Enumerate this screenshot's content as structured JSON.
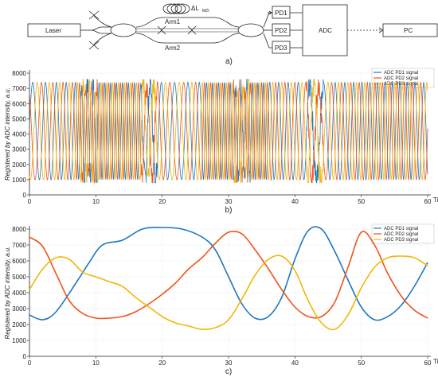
{
  "diagram": {
    "laser": "Laser",
    "arm1": "Arm1",
    "arm2": "Arm2",
    "delta": "ΔL",
    "delta_sub": "MZI",
    "pd1": "PD1",
    "pd2": "PD2",
    "pd3": "PD3",
    "adc": "ADC",
    "pc": "PC",
    "panel": "a)"
  },
  "chart_data": [
    {
      "type": "line",
      "panel": "b)",
      "ylabel": "Registered by ADC intensity, a.u.",
      "xlabel": "Time, s",
      "xlim": [
        0,
        60
      ],
      "ylim": [
        0,
        8000
      ],
      "xticks": [
        0,
        10,
        20,
        30,
        40,
        50,
        60
      ],
      "yticks": [
        0,
        1000,
        2000,
        3000,
        4000,
        5000,
        6000,
        7000,
        8000
      ],
      "legend_position": "top-right",
      "series": [
        {
          "name": "ADC PD1 signal",
          "color": "#1f77c0"
        },
        {
          "name": "ADC PD2 signal",
          "color": "#f0531c"
        },
        {
          "name": "ADC PD3 signal",
          "color": "#f2b705"
        }
      ],
      "pattern": "fast oscillation between ~1000 and ~7500 with noisy bursts near t≈9, 18, 32, 43 s"
    },
    {
      "type": "line",
      "panel": "c)",
      "ylabel": "Registered by ADC intensity, a.u.",
      "xlabel": "Time, s",
      "xlim": [
        0,
        60
      ],
      "ylim": [
        0,
        8000
      ],
      "xticks": [
        0,
        10,
        20,
        30,
        40,
        50,
        60
      ],
      "yticks": [
        0,
        1000,
        2000,
        3000,
        4000,
        5000,
        6000,
        7000,
        8000
      ],
      "legend_position": "top-right",
      "series": [
        {
          "name": "ADC PD1 signal",
          "color": "#1f77c0",
          "x": [
            0,
            2,
            4,
            7,
            9,
            11,
            14,
            17,
            20,
            23,
            26,
            28,
            30,
            32,
            34,
            36,
            38,
            40,
            42,
            44,
            46,
            48,
            50,
            52,
            54,
            56,
            58,
            60
          ],
          "y": [
            2600,
            2300,
            2800,
            4600,
            5900,
            7000,
            7300,
            8000,
            8100,
            8000,
            7500,
            6700,
            5000,
            3300,
            2400,
            2500,
            3700,
            6100,
            7900,
            8000,
            6600,
            4800,
            3100,
            2300,
            2500,
            3200,
            4400,
            5900
          ]
        },
        {
          "name": "ADC PD2 signal",
          "color": "#f0531c",
          "x": [
            0,
            2,
            4,
            6,
            8,
            10,
            12,
            14,
            16,
            18,
            20,
            22,
            24,
            26,
            28,
            30,
            32,
            34,
            36,
            38,
            40,
            42,
            44,
            46,
            48,
            50,
            52,
            54,
            56,
            58,
            60
          ],
          "y": [
            7500,
            6900,
            5200,
            3500,
            2700,
            2400,
            2400,
            2500,
            2800,
            3300,
            3900,
            4600,
            5500,
            6200,
            7100,
            7800,
            7700,
            6700,
            5500,
            4200,
            3100,
            2500,
            2500,
            3400,
            5600,
            7800,
            7000,
            5200,
            3800,
            2900,
            2400
          ]
        },
        {
          "name": "ADC PD3 signal",
          "color": "#f2b705",
          "x": [
            0,
            2,
            4,
            6,
            8,
            10,
            12,
            14,
            16,
            18,
            20,
            22,
            24,
            26,
            28,
            30,
            32,
            34,
            36,
            38,
            40,
            42,
            44,
            46,
            48,
            50,
            52,
            54,
            56,
            58,
            60
          ],
          "y": [
            4200,
            5500,
            6200,
            6100,
            5300,
            5000,
            4700,
            4400,
            3700,
            3100,
            2500,
            2100,
            1900,
            1700,
            1800,
            2300,
            3600,
            5100,
            6100,
            6300,
            5400,
            3500,
            2100,
            1700,
            2600,
            4300,
            5600,
            6200,
            6300,
            6200,
            5700
          ]
        }
      ]
    }
  ]
}
